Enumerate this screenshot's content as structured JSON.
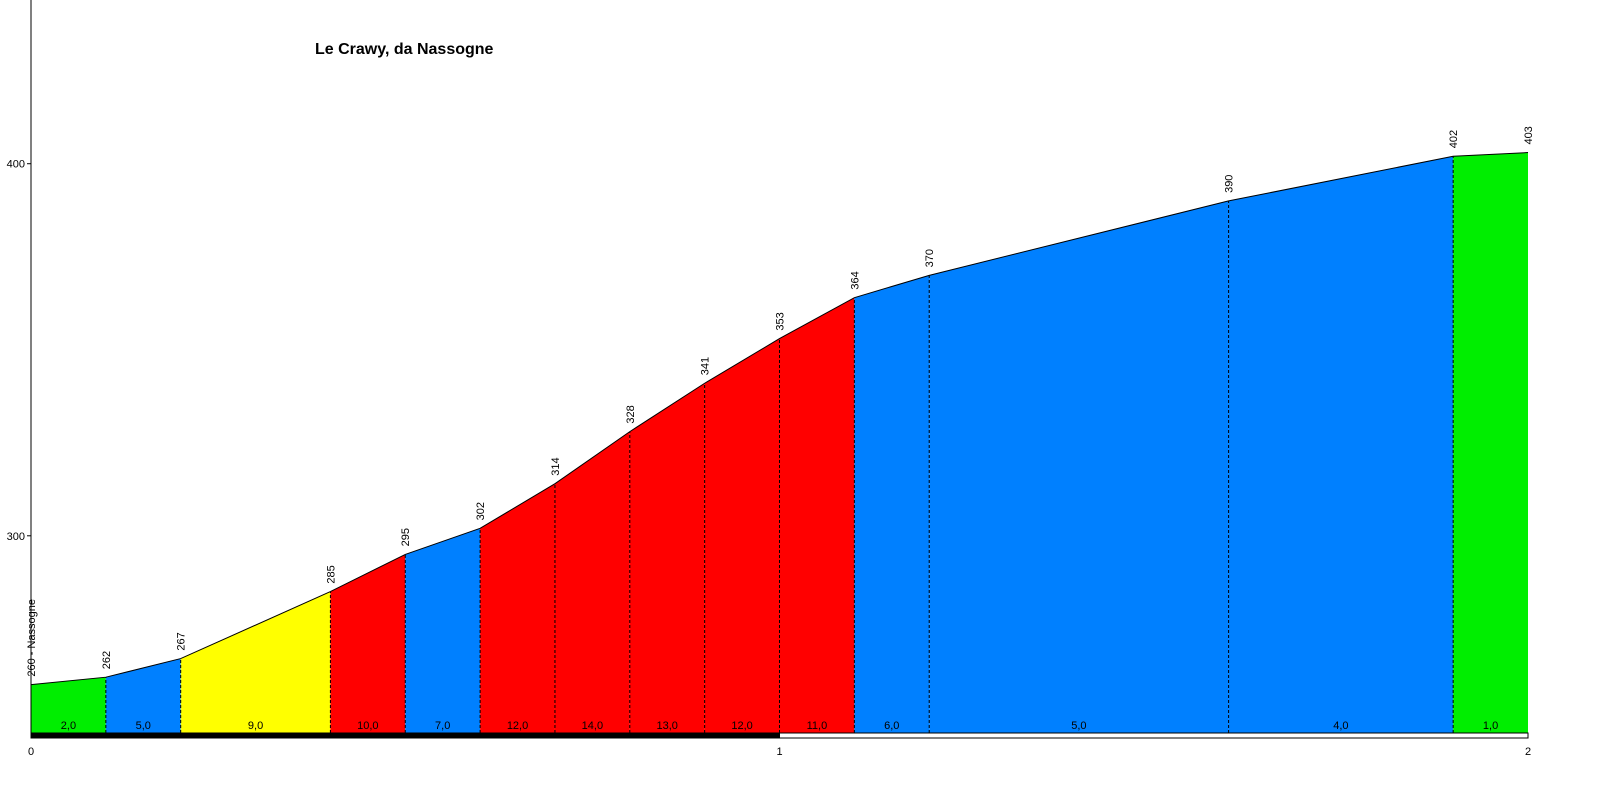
{
  "chart_data": {
    "type": "area",
    "title": "Le Crawy, da Nassogne",
    "xlabel": "",
    "ylabel": "",
    "xlim": [
      0,
      2
    ],
    "ylim": [
      247,
      444
    ],
    "x_ticks": [
      {
        "value": 0,
        "label": "0"
      },
      {
        "value": 1,
        "label": "1"
      },
      {
        "value": 2,
        "label": "2"
      }
    ],
    "y_ticks": [
      {
        "value": 300,
        "label": "300"
      },
      {
        "value": 400,
        "label": "400"
      }
    ],
    "profile": {
      "distance_km": [
        0,
        0.1,
        0.2,
        0.4,
        0.5,
        0.6,
        0.7,
        0.8,
        0.9,
        1.0,
        1.1,
        1.2,
        1.6,
        1.9,
        2.0
      ],
      "elevation_m": [
        260,
        262,
        267,
        285,
        295,
        302,
        314,
        328,
        341,
        353,
        364,
        370,
        390,
        402,
        403
      ],
      "elevation_labels": [
        "260 - Nassogne",
        "262",
        "267",
        "285",
        "295",
        "302",
        "314",
        "328",
        "341",
        "353",
        "364",
        "370",
        "390",
        "402",
        "403"
      ]
    },
    "segments": [
      {
        "from_km": 0.0,
        "to_km": 0.1,
        "gradient_label": "2,0",
        "color": "#00ee00"
      },
      {
        "from_km": 0.1,
        "to_km": 0.2,
        "gradient_label": "5,0",
        "color": "#0080ff"
      },
      {
        "from_km": 0.2,
        "to_km": 0.4,
        "gradient_label": "9,0",
        "color": "#ffff00"
      },
      {
        "from_km": 0.4,
        "to_km": 0.5,
        "gradient_label": "10,0",
        "color": "#ff0000"
      },
      {
        "from_km": 0.5,
        "to_km": 0.6,
        "gradient_label": "7,0",
        "color": "#0080ff"
      },
      {
        "from_km": 0.6,
        "to_km": 0.7,
        "gradient_label": "12,0",
        "color": "#ff0000"
      },
      {
        "from_km": 0.7,
        "to_km": 0.8,
        "gradient_label": "14,0",
        "color": "#ff0000"
      },
      {
        "from_km": 0.8,
        "to_km": 0.9,
        "gradient_label": "13,0",
        "color": "#ff0000"
      },
      {
        "from_km": 0.9,
        "to_km": 1.0,
        "gradient_label": "12,0",
        "color": "#ff0000"
      },
      {
        "from_km": 1.0,
        "to_km": 1.1,
        "gradient_label": "11,0",
        "color": "#ff0000"
      },
      {
        "from_km": 1.1,
        "to_km": 1.2,
        "gradient_label": "6,0",
        "color": "#0080ff"
      },
      {
        "from_km": 1.2,
        "to_km": 1.6,
        "gradient_label": "5,0",
        "color": "#0080ff"
      },
      {
        "from_km": 1.6,
        "to_km": 1.9,
        "gradient_label": "4,0",
        "color": "#0080ff"
      },
      {
        "from_km": 1.9,
        "to_km": 2.0,
        "gradient_label": "1,0",
        "color": "#00ee00"
      }
    ],
    "km_bar": [
      {
        "from_km": 0,
        "to_km": 1,
        "color": "#000000"
      },
      {
        "from_km": 1,
        "to_km": 2,
        "color": "#ffffff"
      }
    ],
    "grid": false,
    "legend": "none"
  }
}
